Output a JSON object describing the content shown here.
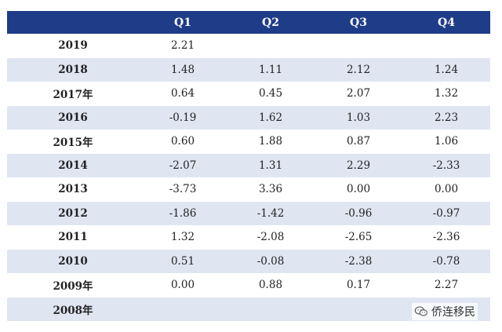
{
  "table": {
    "headers": [
      "",
      "Q1",
      "Q2",
      "Q3",
      "Q4"
    ],
    "rows": [
      {
        "year": "2019",
        "q1": "2.21",
        "q2": "",
        "q3": "",
        "q4": ""
      },
      {
        "year": "2018",
        "q1": "1.48",
        "q2": "1.11",
        "q3": "2.12",
        "q4": "1.24"
      },
      {
        "year": "2017年",
        "q1": "0.64",
        "q2": "0.45",
        "q3": "2.07",
        "q4": "1.32"
      },
      {
        "year": "2016",
        "q1": "-0.19",
        "q2": "1.62",
        "q3": "1.03",
        "q4": "2.23"
      },
      {
        "year": "2015年",
        "q1": "0.60",
        "q2": "1.88",
        "q3": "0.87",
        "q4": "1.06"
      },
      {
        "year": "2014",
        "q1": "-2.07",
        "q2": "1.31",
        "q3": "2.29",
        "q4": "-2.33"
      },
      {
        "year": "2013",
        "q1": "-3.73",
        "q2": "3.36",
        "q3": "0.00",
        "q4": "0.00"
      },
      {
        "year": "2012",
        "q1": "-1.86",
        "q2": "-1.42",
        "q3": "-0.96",
        "q4": "-0.97"
      },
      {
        "year": "2011",
        "q1": "1.32",
        "q2": "-2.08",
        "q3": "-2.65",
        "q4": "-2.36"
      },
      {
        "year": "2010",
        "q1": "0.51",
        "q2": "-0.08",
        "q3": "-2.38",
        "q4": "-0.78"
      },
      {
        "year": "2009年",
        "q1": "0.00",
        "q2": "0.88",
        "q3": "0.17",
        "q4": "2.27"
      },
      {
        "year": "2008年",
        "q1": "",
        "q2": "",
        "q3": "",
        "q4": ""
      }
    ]
  },
  "watermark": {
    "icon": "wechat-icon",
    "text": "侨连移民"
  },
  "colors": {
    "header_bg": "#1f3c88",
    "alt_row_bg": "#dfe6f2"
  }
}
